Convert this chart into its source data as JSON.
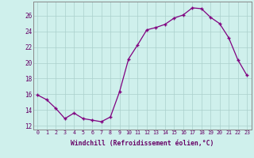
{
  "x": [
    0,
    1,
    2,
    3,
    4,
    5,
    6,
    7,
    8,
    9,
    10,
    11,
    12,
    13,
    14,
    15,
    16,
    17,
    18,
    19,
    20,
    21,
    22,
    23
  ],
  "y": [
    15.9,
    15.3,
    14.2,
    12.9,
    13.6,
    12.9,
    12.7,
    12.5,
    13.1,
    16.3,
    20.5,
    22.3,
    24.2,
    24.5,
    24.9,
    25.7,
    26.1,
    27.0,
    26.9,
    25.8,
    25.0,
    23.2,
    20.4,
    18.4
  ],
  "line_color": "#800080",
  "marker_color": "#800080",
  "bg_color": "#cff0ec",
  "grid_color": "#aacfcb",
  "xlabel": "Windchill (Refroidissement éolien,°C)",
  "ylabel_ticks": [
    12,
    14,
    16,
    18,
    20,
    22,
    24,
    26
  ],
  "ylim": [
    11.5,
    27.8
  ],
  "xlim": [
    -0.5,
    23.5
  ],
  "x_tick_labels": [
    "0",
    "1",
    "2",
    "3",
    "4",
    "5",
    "6",
    "7",
    "8",
    "9",
    "10",
    "11",
    "12",
    "13",
    "14",
    "15",
    "16",
    "17",
    "18",
    "19",
    "20",
    "21",
    "22",
    "23"
  ]
}
